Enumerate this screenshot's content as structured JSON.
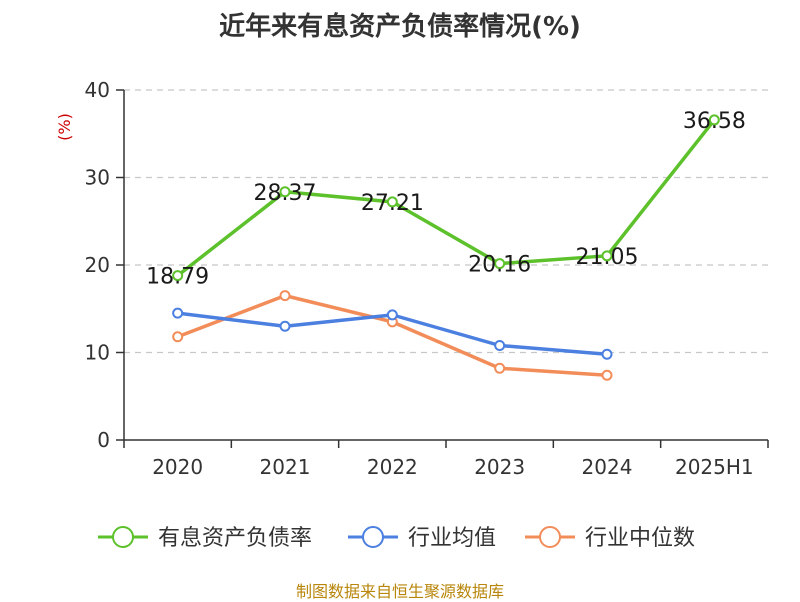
{
  "title": "近年来有息资产负债率情况(%)",
  "source": "制图数据来自恒生聚源数据库",
  "chart_data": {
    "type": "line",
    "title": "近年来有息资产负债率情况(%)",
    "ylabel": "(%)",
    "xlabel": "",
    "categories": [
      "2020",
      "2021",
      "2022",
      "2023",
      "2024",
      "2025H1"
    ],
    "ylim": [
      0,
      40
    ],
    "yticks": [
      0,
      10,
      20,
      30,
      40
    ],
    "grid": true,
    "legend_position": "bottom",
    "series": [
      {
        "name": "有息资产负债率",
        "color": "#5cc12a",
        "values": [
          18.79,
          28.37,
          27.21,
          20.16,
          21.05,
          36.58
        ],
        "labels": [
          "18.79",
          "28.37",
          "27.21",
          "20.16",
          "21.05",
          "36.58"
        ]
      },
      {
        "name": "行业均值",
        "color": "#4b7fe0",
        "values": [
          14.5,
          13.0,
          14.3,
          10.8,
          9.8,
          null
        ]
      },
      {
        "name": "行业中位数",
        "color": "#f28d5a",
        "values": [
          11.8,
          16.5,
          13.5,
          8.2,
          7.4,
          null
        ]
      }
    ]
  }
}
